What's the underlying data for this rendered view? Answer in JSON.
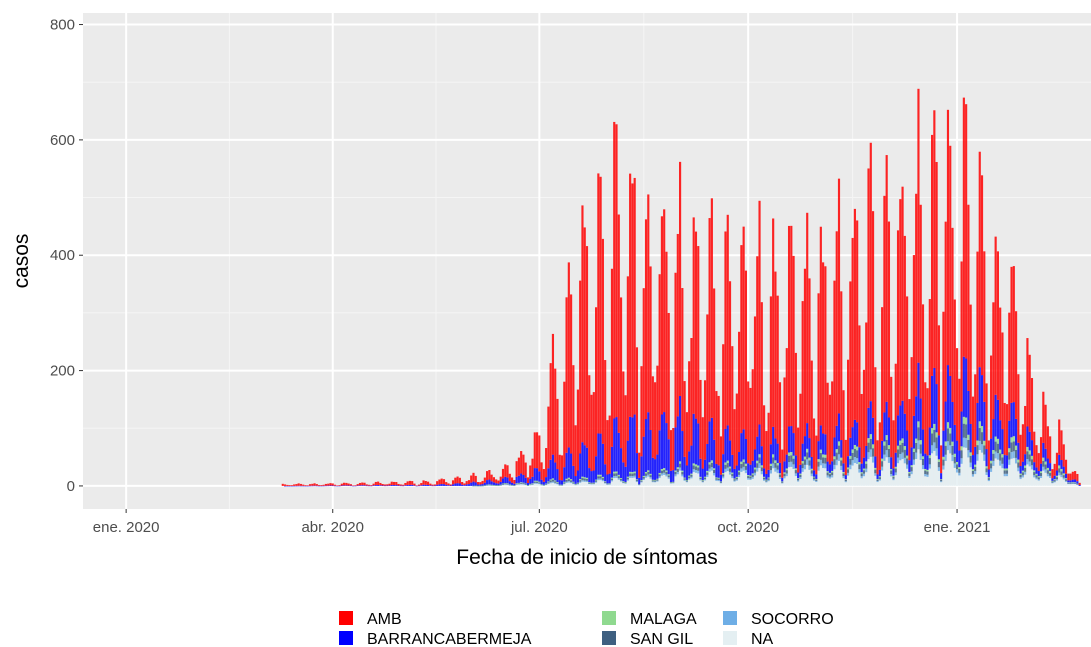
{
  "chart_data": {
    "type": "bar",
    "stacked": true,
    "xlabel": "Fecha de inicio de síntomas",
    "ylabel": "casos",
    "ylim": [
      -40,
      820
    ],
    "yticks": [
      0,
      200,
      400,
      600,
      800
    ],
    "x_range": [
      "2019-12-13",
      "2021-03-01"
    ],
    "x_ticks": [
      {
        "date": "2020-01-01",
        "label": "ene. 2020"
      },
      {
        "date": "2020-04-01",
        "label": "abr. 2020"
      },
      {
        "date": "2020-07-01",
        "label": "jul. 2020"
      },
      {
        "date": "2020-10-01",
        "label": "oct. 2020"
      },
      {
        "date": "2021-01-01",
        "label": "ene. 2021"
      }
    ],
    "grid": true,
    "legend_position": "bottom",
    "series": [
      {
        "name": "AMB",
        "color": "#ff0000",
        "profile": [
          [
            "2020-03-10",
            3
          ],
          [
            "2020-04-15",
            4
          ],
          [
            "2020-05-15",
            7
          ],
          [
            "2020-06-15",
            15
          ],
          [
            "2020-06-30",
            55
          ],
          [
            "2020-07-10",
            200
          ],
          [
            "2020-07-20",
            360
          ],
          [
            "2020-08-01",
            420
          ],
          [
            "2020-08-15",
            380
          ],
          [
            "2020-08-25",
            330
          ],
          [
            "2020-09-05",
            290
          ],
          [
            "2020-09-20",
            320
          ],
          [
            "2020-10-05",
            300
          ],
          [
            "2020-10-20",
            280
          ],
          [
            "2020-11-05",
            300
          ],
          [
            "2020-11-20",
            340
          ],
          [
            "2020-12-01",
            370
          ],
          [
            "2020-12-10",
            370
          ],
          [
            "2020-12-25",
            380
          ],
          [
            "2021-01-05",
            360
          ],
          [
            "2021-01-15",
            300
          ],
          [
            "2021-01-25",
            200
          ],
          [
            "2021-02-05",
            90
          ],
          [
            "2021-02-15",
            50
          ],
          [
            "2021-02-20",
            25
          ],
          [
            "2021-02-24",
            5
          ]
        ]
      },
      {
        "name": "BARRANCABERMEJA",
        "color": "#0000ff",
        "profile": [
          [
            "2020-03-10",
            0
          ],
          [
            "2020-05-15",
            2
          ],
          [
            "2020-06-15",
            8
          ],
          [
            "2020-07-01",
            20
          ],
          [
            "2020-07-15",
            45
          ],
          [
            "2020-08-01",
            70
          ],
          [
            "2020-08-15",
            100
          ],
          [
            "2020-09-01",
            85
          ],
          [
            "2020-09-15",
            60
          ],
          [
            "2020-10-05",
            40
          ],
          [
            "2020-10-25",
            35
          ],
          [
            "2020-11-15",
            38
          ],
          [
            "2020-12-01",
            50
          ],
          [
            "2020-12-15",
            80
          ],
          [
            "2021-01-01",
            85
          ],
          [
            "2021-01-15",
            80
          ],
          [
            "2021-02-01",
            30
          ],
          [
            "2021-02-15",
            15
          ],
          [
            "2021-02-24",
            2
          ]
        ]
      },
      {
        "name": "MALAGA",
        "color": "#8fd98f",
        "profile": [
          [
            "2020-06-01",
            0
          ],
          [
            "2020-07-15",
            2
          ],
          [
            "2020-09-01",
            3
          ],
          [
            "2020-11-01",
            5
          ],
          [
            "2020-12-15",
            8
          ],
          [
            "2021-01-10",
            10
          ],
          [
            "2021-02-15",
            4
          ],
          [
            "2021-02-24",
            0
          ]
        ]
      },
      {
        "name": "SAN GIL",
        "color": "#3e5f80",
        "profile": [
          [
            "2020-06-01",
            0
          ],
          [
            "2020-07-15",
            3
          ],
          [
            "2020-09-01",
            5
          ],
          [
            "2020-11-01",
            10
          ],
          [
            "2020-12-15",
            18
          ],
          [
            "2021-01-10",
            20
          ],
          [
            "2021-02-15",
            6
          ],
          [
            "2021-02-24",
            0
          ]
        ]
      },
      {
        "name": "SOCORRO",
        "color": "#6eaee6",
        "profile": [
          [
            "2020-06-01",
            0
          ],
          [
            "2020-07-15",
            2
          ],
          [
            "2020-09-01",
            4
          ],
          [
            "2020-11-01",
            8
          ],
          [
            "2020-12-15",
            12
          ],
          [
            "2021-01-10",
            14
          ],
          [
            "2021-02-15",
            4
          ],
          [
            "2021-02-24",
            0
          ]
        ]
      },
      {
        "name": "NA",
        "color": "#e4eff2",
        "profile": [
          [
            "2020-06-01",
            0
          ],
          [
            "2020-07-15",
            5
          ],
          [
            "2020-09-01",
            20
          ],
          [
            "2020-10-15",
            25
          ],
          [
            "2020-11-15",
            35
          ],
          [
            "2020-12-15",
            50
          ],
          [
            "2021-01-10",
            55
          ],
          [
            "2021-01-25",
            40
          ],
          [
            "2021-02-15",
            15
          ],
          [
            "2021-02-24",
            0
          ]
        ]
      }
    ]
  }
}
